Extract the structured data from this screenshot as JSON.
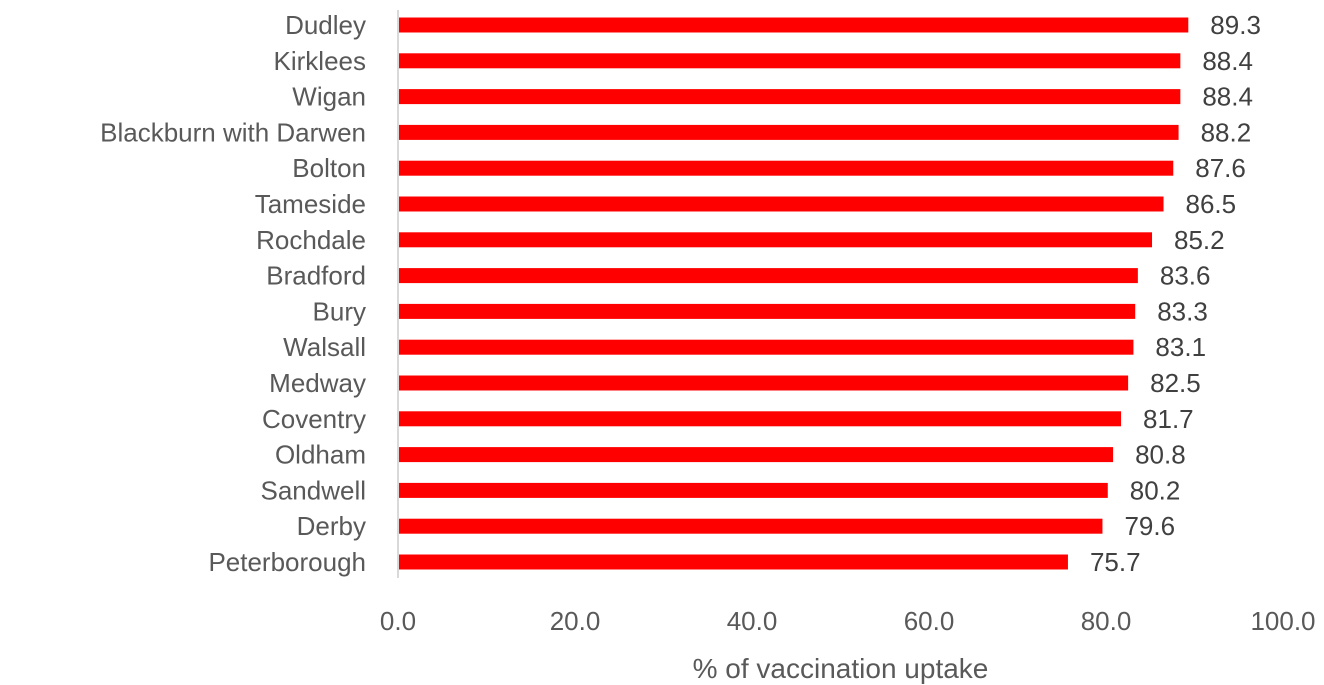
{
  "chart_data": {
    "type": "bar",
    "orientation": "horizontal",
    "categories": [
      "Dudley",
      "Kirklees",
      "Wigan",
      "Blackburn with Darwen",
      "Bolton",
      "Tameside",
      "Rochdale",
      "Bradford",
      "Bury",
      "Walsall",
      "Medway",
      "Coventry",
      "Oldham",
      "Sandwell",
      "Derby",
      "Peterborough"
    ],
    "values": [
      89.3,
      88.4,
      88.4,
      88.2,
      87.6,
      86.5,
      85.2,
      83.6,
      83.3,
      83.1,
      82.5,
      81.7,
      80.8,
      80.2,
      79.6,
      75.7
    ],
    "value_labels": [
      "89.3",
      "88.4",
      "88.4",
      "88.2",
      "87.6",
      "86.5",
      "85.2",
      "83.6",
      "83.3",
      "83.1",
      "82.5",
      "81.7",
      "80.8",
      "80.2",
      "79.6",
      "75.7"
    ],
    "xlabel": "% of vaccination uptake",
    "ylabel": "",
    "xlim": [
      0,
      100
    ],
    "x_ticks": [
      0,
      20,
      40,
      60,
      80,
      100
    ],
    "x_tick_labels": [
      "0.0",
      "20.0",
      "40.0",
      "60.0",
      "80.0",
      "100.0"
    ],
    "grid": false,
    "bar_color": "#ff0000",
    "axis_color": "#d9d9d9"
  }
}
